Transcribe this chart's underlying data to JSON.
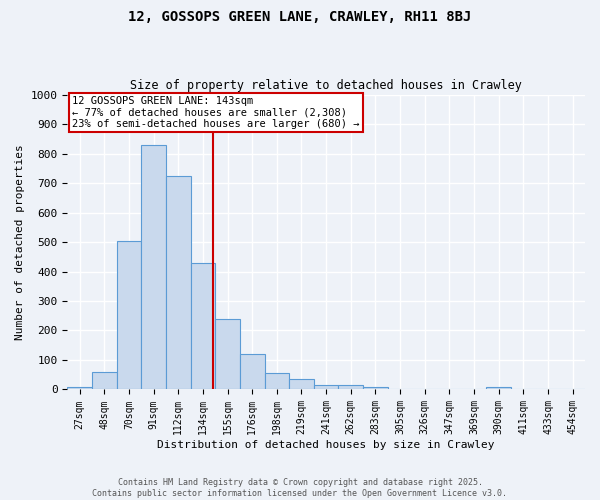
{
  "title1": "12, GOSSOPS GREEN LANE, CRAWLEY, RH11 8BJ",
  "title2": "Size of property relative to detached houses in Crawley",
  "xlabel": "Distribution of detached houses by size in Crawley",
  "ylabel": "Number of detached properties",
  "bin_labels": [
    "27sqm",
    "48sqm",
    "70sqm",
    "91sqm",
    "112sqm",
    "134sqm",
    "155sqm",
    "176sqm",
    "198sqm",
    "219sqm",
    "241sqm",
    "262sqm",
    "283sqm",
    "305sqm",
    "326sqm",
    "347sqm",
    "369sqm",
    "390sqm",
    "411sqm",
    "433sqm",
    "454sqm"
  ],
  "bar_values": [
    10,
    60,
    505,
    830,
    725,
    430,
    240,
    120,
    55,
    35,
    15,
    15,
    10,
    0,
    0,
    0,
    0,
    10,
    0,
    0,
    0
  ],
  "bar_color": "#c9d9ed",
  "bar_edge_color": "#5b9bd5",
  "ylim": [
    0,
    1000
  ],
  "yticks": [
    0,
    100,
    200,
    300,
    400,
    500,
    600,
    700,
    800,
    900,
    1000
  ],
  "property_label": "12 GOSSOPS GREEN LANE: 143sqm",
  "annotation_line1": "← 77% of detached houses are smaller (2,308)",
  "annotation_line2": "23% of semi-detached houses are larger (680) →",
  "annotation_box_color": "#ffffff",
  "annotation_box_edge": "#cc0000",
  "property_line_color": "#cc0000",
  "property_bin_idx": 5,
  "property_bin_low": 134,
  "property_bin_high": 155,
  "property_size": 143,
  "background_color": "#eef2f8",
  "grid_color": "#ffffff",
  "footer1": "Contains HM Land Registry data © Crown copyright and database right 2025.",
  "footer2": "Contains public sector information licensed under the Open Government Licence v3.0."
}
